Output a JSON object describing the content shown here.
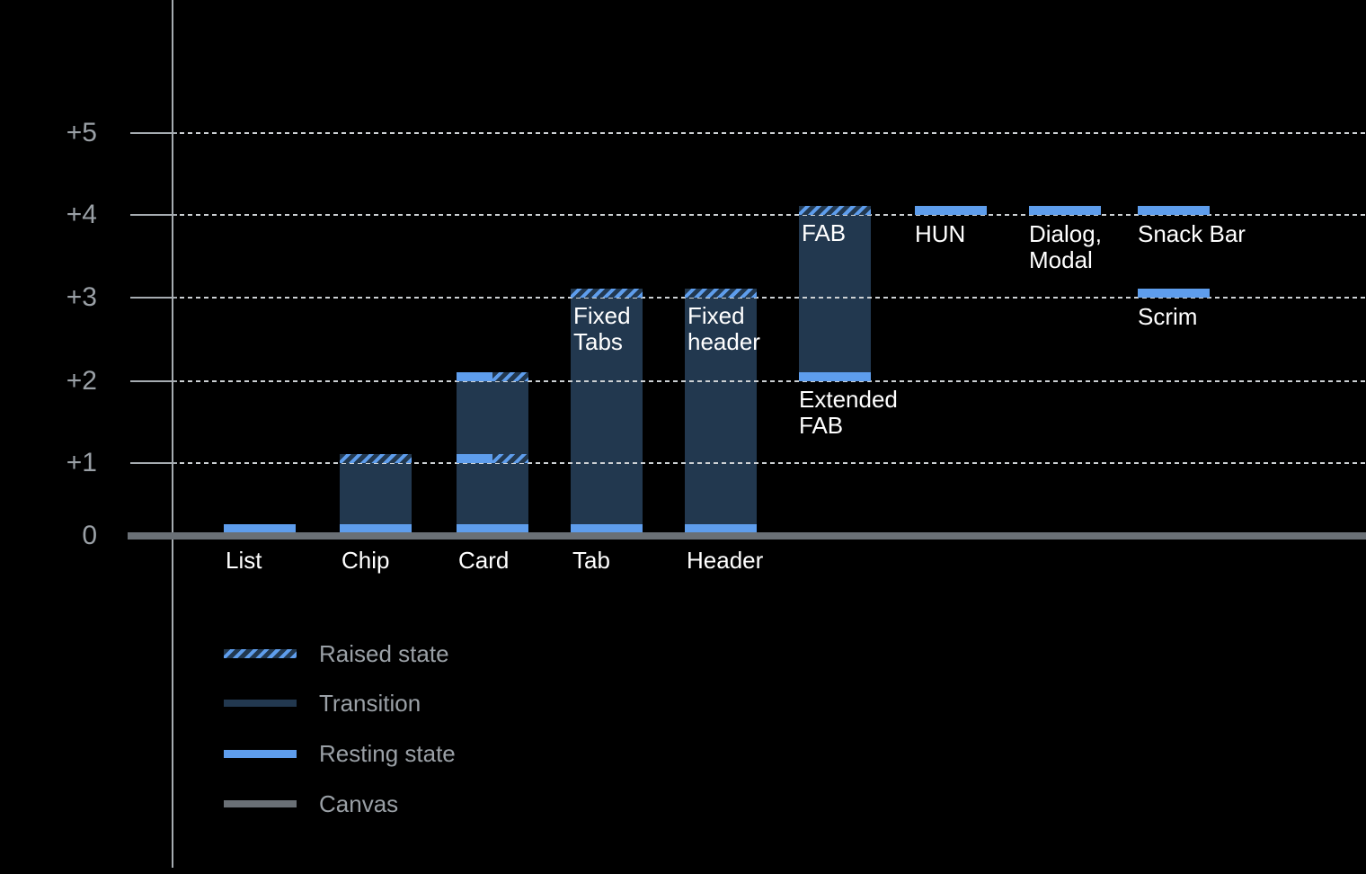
{
  "chart_data": {
    "type": "bar",
    "description": "Component elevation chart (dark theme): resting and raised elevation states per UI component",
    "y_axis": {
      "ticks": [
        {
          "label": "+5",
          "value": 5
        },
        {
          "label": "+4",
          "value": 4
        },
        {
          "label": "+3",
          "value": 3
        },
        {
          "label": "+2",
          "value": 2
        },
        {
          "label": "+1",
          "value": 1
        },
        {
          "label": "0",
          "value": 0
        }
      ],
      "range": [
        0,
        5
      ],
      "grid": "dotted horizontal lines at +1..+5, thick canvas line at 0"
    },
    "bars": [
      {
        "label": "List",
        "label_pos": "below",
        "col": 0,
        "markers": [
          {
            "level": 0,
            "type": "resting"
          }
        ]
      },
      {
        "label": "Chip",
        "label_pos": "below",
        "col": 1,
        "fill": [
          0,
          1
        ],
        "markers": [
          {
            "level": 1,
            "type": "raised"
          },
          {
            "level": 0,
            "type": "resting"
          }
        ]
      },
      {
        "label": "Card",
        "label_pos": "below",
        "col": 2,
        "fill": [
          0,
          2
        ],
        "markers": [
          {
            "level": 2,
            "type": "split"
          },
          {
            "level": 1,
            "type": "split"
          },
          {
            "level": 0,
            "type": "resting"
          }
        ]
      },
      {
        "label": "Tab",
        "label_pos": "below",
        "col": 3,
        "fill": [
          0,
          3
        ],
        "inside_label": "Fixed\nTabs",
        "markers": [
          {
            "level": 3,
            "type": "raised"
          },
          {
            "level": 0,
            "type": "resting"
          }
        ]
      },
      {
        "label": "Header",
        "label_pos": "below",
        "col": 4,
        "fill": [
          0,
          3
        ],
        "inside_label": "Fixed\nheader",
        "markers": [
          {
            "level": 3,
            "type": "raised"
          },
          {
            "level": 0,
            "type": "resting"
          }
        ]
      },
      {
        "label": "Extended\nFAB",
        "label_pos": "under-bar",
        "col": 5,
        "fill": [
          2,
          4
        ],
        "inside_label": "FAB",
        "markers": [
          {
            "level": 4,
            "type": "raised"
          },
          {
            "level": 2,
            "type": "resting"
          }
        ]
      },
      {
        "label": "HUN",
        "label_pos": "under-band",
        "col": 6,
        "markers": [
          {
            "level": 4,
            "type": "resting"
          }
        ]
      },
      {
        "label": "Dialog,\nModal",
        "label_pos": "under-band",
        "col": 7,
        "markers": [
          {
            "level": 4,
            "type": "resting"
          }
        ]
      },
      {
        "label": "Snack Bar",
        "label_pos": "under-band",
        "col": 8,
        "markers": [
          {
            "level": 4,
            "type": "resting"
          }
        ]
      },
      {
        "label": "Scrim",
        "label_pos": "under-band",
        "col": 8,
        "markers": [
          {
            "level": 3,
            "type": "resting"
          }
        ]
      }
    ],
    "legend": [
      {
        "label": "Raised state",
        "style": "raised"
      },
      {
        "label": "Transition",
        "style": "transition"
      },
      {
        "label": "Resting state",
        "style": "resting"
      },
      {
        "label": "Canvas",
        "style": "canvas"
      }
    ],
    "legend_position": "bottom-left",
    "colors": {
      "background": "#000000",
      "resting_blue": "#5E9DEC",
      "transition_navy": "#22384F",
      "canvas_gray": "#6A7076",
      "gridline_gray": "#CDD1D4",
      "axis_gray": "#A6ACB1",
      "label_gray": "#9AA0A6",
      "bar_text_white": "#FFFFFF"
    }
  }
}
